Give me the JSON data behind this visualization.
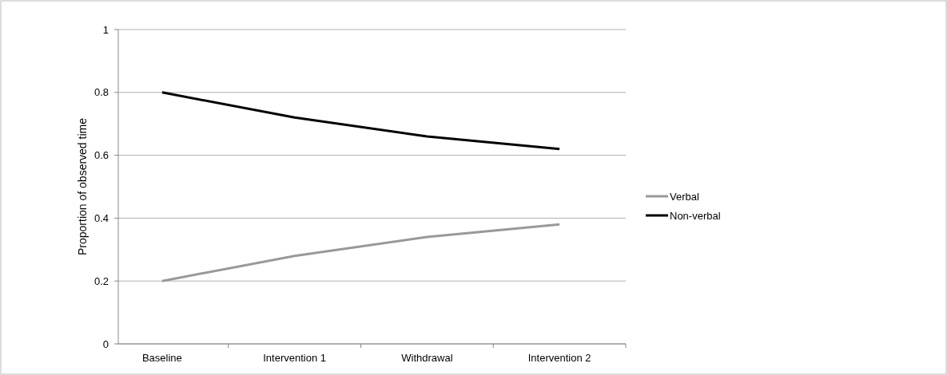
{
  "chart_data": {
    "type": "line",
    "ylabel": "Proportion of observed time",
    "categories": [
      "Baseline",
      "Intervention 1",
      "Withdrawal",
      "Intervention 2"
    ],
    "series": [
      {
        "name": "Verbal",
        "color": "#999999",
        "values": [
          0.2,
          0.28,
          0.34,
          0.38
        ]
      },
      {
        "name": "Non-verbal",
        "color": "#000000",
        "values": [
          0.8,
          0.72,
          0.66,
          0.62
        ]
      }
    ],
    "ylim": [
      0,
      1
    ],
    "yticks": [
      0,
      0.2,
      0.4,
      0.6,
      0.8,
      1
    ],
    "grid": "y",
    "legend": "right",
    "marker": "none",
    "line_style": "solid"
  }
}
